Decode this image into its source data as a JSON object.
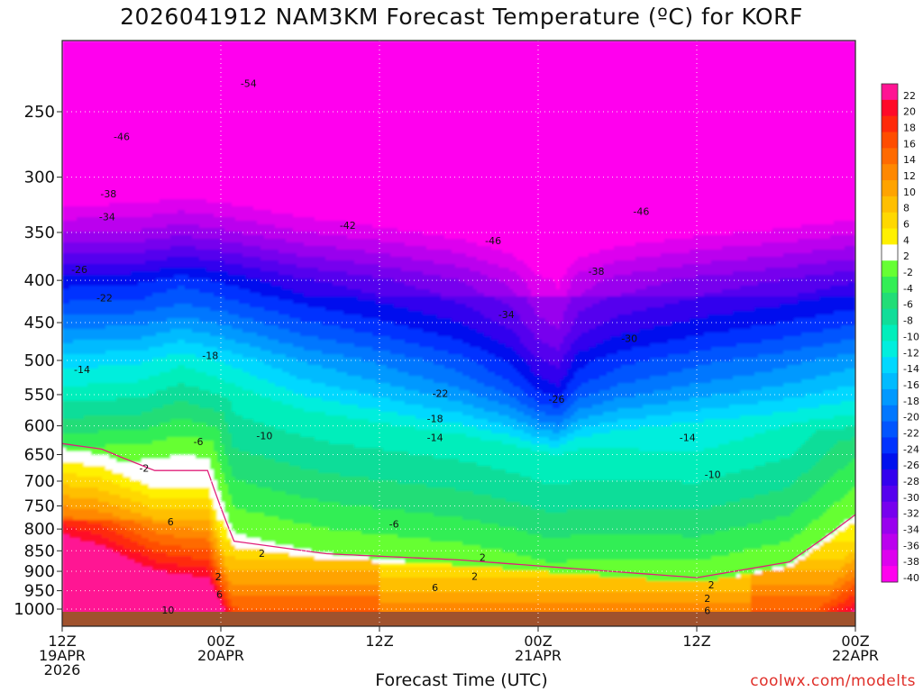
{
  "title": "2026041912 NAM3KM Forecast Temperature (ºC) for KORF",
  "xlabel": "Forecast Time (UTC)",
  "credit": "coolwx.com/modelts",
  "chart_data": {
    "type": "heatmap",
    "title": "2026041912 NAM3KM Forecast Temperature (ºC) for KORF",
    "xlabel": "Forecast Time (UTC)",
    "ylabel": "",
    "x_ticks": [
      {
        "hour": 0,
        "lines": [
          "12Z",
          "19APR",
          "2026"
        ]
      },
      {
        "hour": 12,
        "lines": [
          "00Z",
          "20APR"
        ]
      },
      {
        "hour": 24,
        "lines": [
          "12Z"
        ]
      },
      {
        "hour": 36,
        "lines": [
          "00Z",
          "21APR"
        ]
      },
      {
        "hour": 48,
        "lines": [
          "12Z"
        ]
      },
      {
        "hour": 60,
        "lines": [
          "00Z",
          "22APR"
        ]
      }
    ],
    "xlim": [
      0,
      60
    ],
    "y_axis": "pressure (hPa), log scale, inverted",
    "y_ticks": [
      250,
      300,
      350,
      400,
      450,
      500,
      550,
      600,
      650,
      700,
      750,
      800,
      850,
      900,
      950,
      1000
    ],
    "ylim": [
      1030,
      200
    ],
    "colorbar_labels": [
      22,
      20,
      18,
      16,
      14,
      12,
      10,
      8,
      6,
      4,
      2,
      -2,
      -4,
      -6,
      -8,
      -10,
      -12,
      -14,
      -16,
      -18,
      -20,
      -22,
      -24,
      -26,
      -28,
      -30,
      -32,
      -34,
      -36,
      -38,
      -40
    ],
    "colorbar_colors": [
      "#ff1493",
      "#ff0a28",
      "#ff2a0a",
      "#ff4d00",
      "#ff6a00",
      "#ff8800",
      "#ffa300",
      "#ffbf00",
      "#ffd800",
      "#fff000",
      "#ffffff",
      "#66ff33",
      "#33ee55",
      "#22dd77",
      "#11dd99",
      "#00eebb",
      "#00eedd",
      "#00d8ff",
      "#00bbff",
      "#0099ff",
      "#0077ff",
      "#0055ff",
      "#0033ff",
      "#0011ee",
      "#3300ee",
      "#5500ee",
      "#7700ee",
      "#9900ee",
      "#bb00ee",
      "#dd00ee",
      "#ff00ee"
    ],
    "zero_isotherm_color": "#e0207a",
    "ground_color": "#a0522d",
    "contour_labels": [
      {
        "text": "-54",
        "hour": 14.1,
        "p": 231
      },
      {
        "text": "-46",
        "hour": 4.5,
        "p": 268
      },
      {
        "text": "-38",
        "hour": 3.5,
        "p": 314
      },
      {
        "text": "-34",
        "hour": 3.4,
        "p": 335
      },
      {
        "text": "-42",
        "hour": 21.6,
        "p": 343
      },
      {
        "text": "-46",
        "hour": 32.6,
        "p": 358
      },
      {
        "text": "-46",
        "hour": 43.8,
        "p": 330
      },
      {
        "text": "-26",
        "hour": 1.3,
        "p": 388
      },
      {
        "text": "-22",
        "hour": 3.2,
        "p": 420
      },
      {
        "text": "-38",
        "hour": 40.4,
        "p": 390
      },
      {
        "text": "-34",
        "hour": 33.6,
        "p": 440
      },
      {
        "text": "-30",
        "hour": 42.9,
        "p": 470
      },
      {
        "text": "-18",
        "hour": 11.2,
        "p": 493
      },
      {
        "text": "-14",
        "hour": 1.5,
        "p": 513
      },
      {
        "text": "-22",
        "hour": 28.6,
        "p": 548
      },
      {
        "text": "-26",
        "hour": 37.4,
        "p": 557
      },
      {
        "text": "-18",
        "hour": 28.2,
        "p": 588
      },
      {
        "text": "-14",
        "hour": 28.2,
        "p": 620
      },
      {
        "text": "-10",
        "hour": 15.3,
        "p": 617
      },
      {
        "text": "-6",
        "hour": 10.3,
        "p": 627
      },
      {
        "text": "-14",
        "hour": 47.3,
        "p": 620
      },
      {
        "text": "-2",
        "hour": 6.2,
        "p": 675
      },
      {
        "text": "-10",
        "hour": 49.2,
        "p": 687
      },
      {
        "text": "6",
        "hour": 8.2,
        "p": 784
      },
      {
        "text": "-6",
        "hour": 25.1,
        "p": 789
      },
      {
        "text": "2",
        "hour": 15.1,
        "p": 856
      },
      {
        "text": "2",
        "hour": 31.8,
        "p": 866
      },
      {
        "text": "2",
        "hour": 11.8,
        "p": 913
      },
      {
        "text": "2",
        "hour": 31.2,
        "p": 912
      },
      {
        "text": "2",
        "hour": 49.1,
        "p": 935
      },
      {
        "text": "6",
        "hour": 11.9,
        "p": 960
      },
      {
        "text": "6",
        "hour": 28.2,
        "p": 942
      },
      {
        "text": "2",
        "hour": 48.8,
        "p": 970
      },
      {
        "text": "10",
        "hour": 8.0,
        "p": 1003
      },
      {
        "text": "6",
        "hour": 48.8,
        "p": 1004
      }
    ],
    "warm_layer_top_hPa": [
      {
        "hour": 0,
        "p": 640
      },
      {
        "hour": 3,
        "p": 650
      },
      {
        "hour": 7,
        "p": 690
      },
      {
        "hour": 11,
        "p": 690
      },
      {
        "hour": 13,
        "p": 840
      },
      {
        "hour": 20,
        "p": 870
      },
      {
        "hour": 30,
        "p": 885
      },
      {
        "hour": 40,
        "p": 910
      },
      {
        "hour": 48,
        "p": 930
      },
      {
        "hour": 55,
        "p": 890
      },
      {
        "hour": 60,
        "p": 780
      }
    ]
  }
}
